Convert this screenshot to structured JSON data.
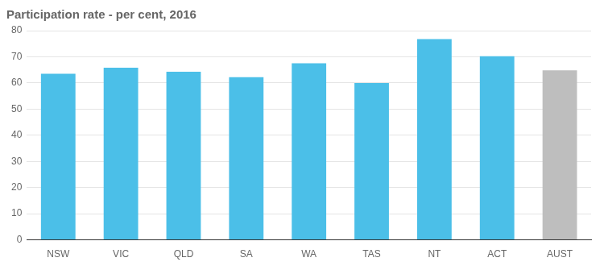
{
  "chart_data": {
    "type": "bar",
    "title": "Participation rate - per cent, 2016",
    "categories": [
      "NSW",
      "VIC",
      "QLD",
      "SA",
      "WA",
      "TAS",
      "NT",
      "ACT",
      "AUST"
    ],
    "values": [
      63.5,
      65.8,
      64.3,
      62.2,
      67.5,
      60.0,
      76.8,
      70.2,
      64.8
    ],
    "colors": [
      "#4BBFE8",
      "#4BBFE8",
      "#4BBFE8",
      "#4BBFE8",
      "#4BBFE8",
      "#4BBFE8",
      "#4BBFE8",
      "#4BBFE8",
      "#BEBEBE"
    ],
    "ylim": [
      0,
      80
    ],
    "yticks": [
      0,
      10,
      20,
      30,
      40,
      50,
      60,
      70,
      80
    ],
    "grid": true
  }
}
